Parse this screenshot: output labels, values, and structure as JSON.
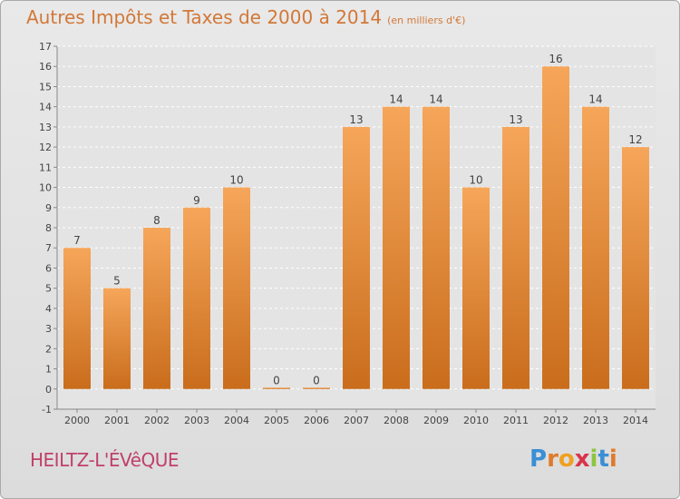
{
  "title": "Autres Impôts et Taxes de 2000 à 2014",
  "unit_label": "(en milliers d'€)",
  "commune": "HEILTZ-L'ÉVêQUE",
  "logo": "Proxiti",
  "colors": {
    "bar_top": "#f6a65a",
    "bar_bottom": "#c96d1c",
    "title": "#d27838",
    "commune": "#c0406a"
  },
  "chart_data": {
    "type": "bar",
    "categories": [
      "2000",
      "2001",
      "2002",
      "2003",
      "2004",
      "2005",
      "2006",
      "2007",
      "2008",
      "2009",
      "2010",
      "2011",
      "2012",
      "2013",
      "2014"
    ],
    "values": [
      7,
      5,
      8,
      9,
      10,
      0,
      0,
      13,
      14,
      14,
      10,
      13,
      16,
      14,
      12
    ],
    "ylim": [
      -1,
      17
    ],
    "yticks": [
      -1,
      0,
      1,
      2,
      3,
      4,
      5,
      6,
      7,
      8,
      9,
      10,
      11,
      12,
      13,
      14,
      15,
      16,
      17
    ],
    "grid": true,
    "legend": "none"
  }
}
